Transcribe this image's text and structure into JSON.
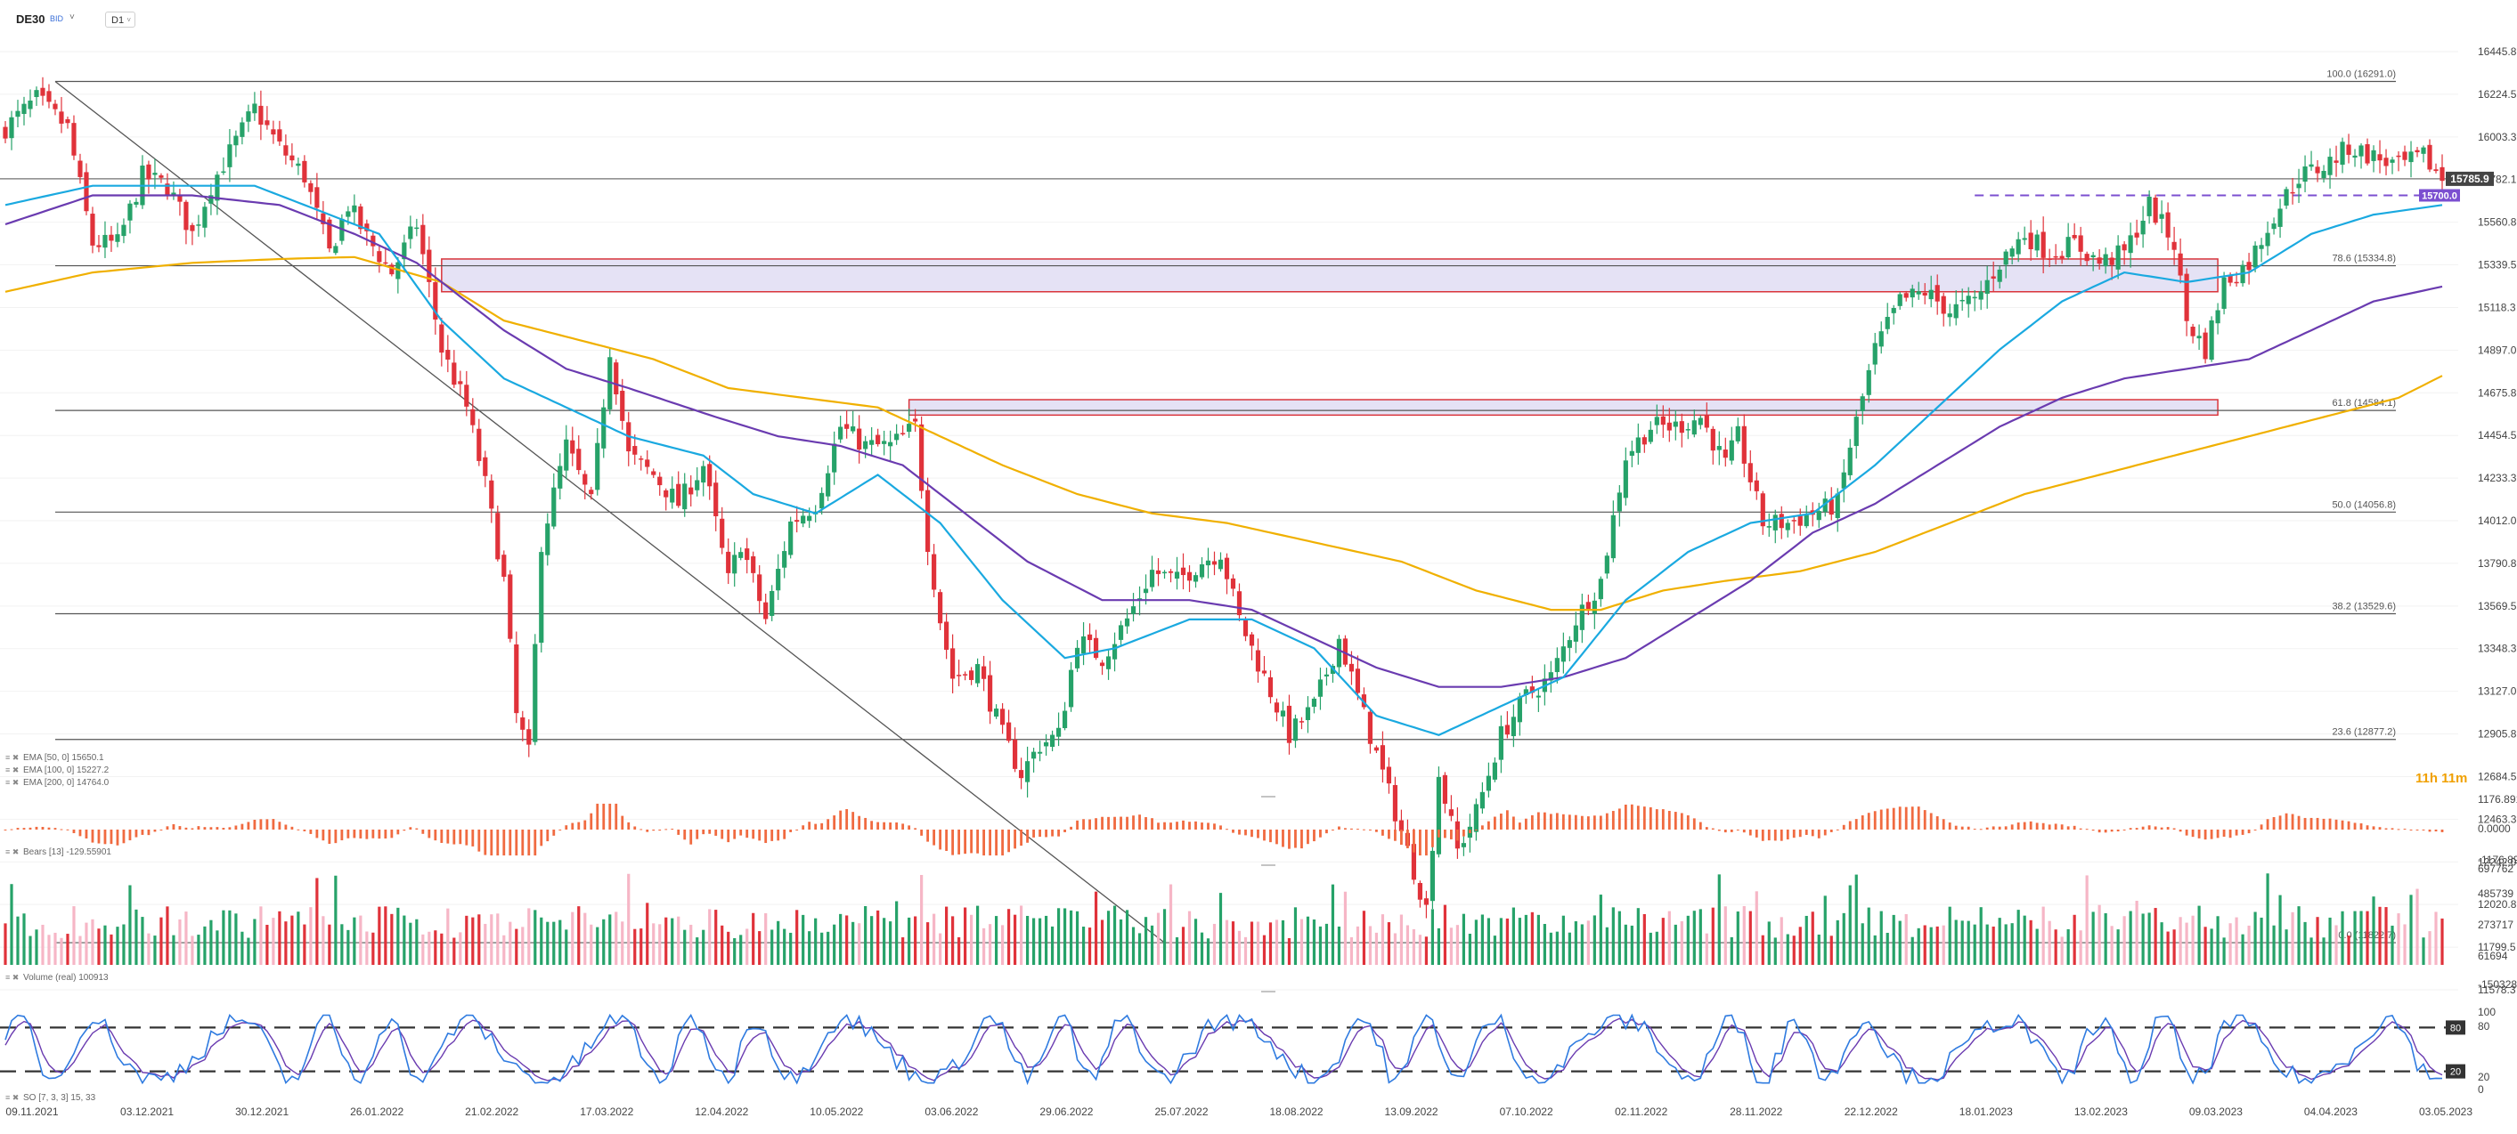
{
  "header": {
    "symbol": "DE30",
    "badge": "BID",
    "caret": "˅",
    "timeframe": "D1",
    "timeframe_caret": "˅"
  },
  "colors": {
    "bull": "#26a269",
    "bear": "#e0323a",
    "ema50": "#1aa9e0",
    "ema100": "#6a3bb0",
    "ema200": "#f0b000",
    "zone_fill": "#dcd8f2",
    "zone_border": "#d9343b",
    "dashed_level": "#7b4fd0",
    "current_price_tag": "#444444",
    "countdown": "#f0a000",
    "bears": "#f06a40",
    "vol_up": "#26a269",
    "vol_down": "#e0323a",
    "vol_down_light": "#f6b6c6",
    "so_main": "#2f7be0",
    "so_signal": "#6a3bb0"
  },
  "chart_data": [
    {
      "type": "candlestick",
      "panel": "price",
      "title": "",
      "ylim": [
        11578.3,
        16445.8
      ],
      "y_ticks": [
        "16445.8",
        "16224.5",
        "16003.3",
        "15782.1",
        "15560.8",
        "15339.5",
        "15118.3",
        "14897.0",
        "14675.8",
        "14454.5",
        "14233.3",
        "14012.0",
        "13790.8",
        "13569.5",
        "13348.3",
        "13127.0",
        "12905.8",
        "12684.5",
        "12463.3",
        "12242.0",
        "12020.8",
        "11799.5",
        "11578.3"
      ],
      "x_labels": [
        "09.11.2021",
        "03.12.2021",
        "30.12.2021",
        "26.01.2022",
        "21.02.2022",
        "17.03.2022",
        "12.04.2022",
        "10.05.2022",
        "03.06.2022",
        "29.06.2022",
        "25.07.2022",
        "18.08.2022",
        "13.09.2022",
        "07.10.2022",
        "02.11.2022",
        "28.11.2022",
        "22.12.2022",
        "18.01.2023",
        "13.02.2023",
        "09.03.2023",
        "04.04.2023",
        "03.05.2023"
      ],
      "close_anchors": [
        [
          0,
          16050
        ],
        [
          5,
          16200
        ],
        [
          10,
          16050
        ],
        [
          14,
          15450
        ],
        [
          18,
          15450
        ],
        [
          22,
          15800
        ],
        [
          26,
          15750
        ],
        [
          30,
          15500
        ],
        [
          33,
          15750
        ],
        [
          37,
          15980
        ],
        [
          40,
          16150
        ],
        [
          44,
          15950
        ],
        [
          48,
          15800
        ],
        [
          52,
          15400
        ],
        [
          55,
          15650
        ],
        [
          58,
          15480
        ],
        [
          62,
          15300
        ],
        [
          66,
          15550
        ],
        [
          70,
          14900
        ],
        [
          74,
          14600
        ],
        [
          77,
          14200
        ],
        [
          80,
          13700
        ],
        [
          82,
          13000
        ],
        [
          84,
          12800
        ],
        [
          86,
          13900
        ],
        [
          90,
          14400
        ],
        [
          94,
          14100
        ],
        [
          97,
          14900
        ],
        [
          100,
          14350
        ],
        [
          104,
          14250
        ],
        [
          108,
          14100
        ],
        [
          112,
          14300
        ],
        [
          116,
          13700
        ],
        [
          118,
          13900
        ],
        [
          122,
          13500
        ],
        [
          126,
          14000
        ],
        [
          130,
          14100
        ],
        [
          134,
          14500
        ],
        [
          138,
          14400
        ],
        [
          142,
          14400
        ],
        [
          146,
          14500
        ],
        [
          148,
          13900
        ],
        [
          150,
          13500
        ],
        [
          152,
          13200
        ],
        [
          156,
          13250
        ],
        [
          160,
          12900
        ],
        [
          163,
          12700
        ],
        [
          166,
          12850
        ],
        [
          169,
          12900
        ],
        [
          172,
          13400
        ],
        [
          176,
          13300
        ],
        [
          180,
          13500
        ],
        [
          184,
          13750
        ],
        [
          188,
          13700
        ],
        [
          192,
          13800
        ],
        [
          195,
          13850
        ],
        [
          198,
          13500
        ],
        [
          202,
          13200
        ],
        [
          206,
          12900
        ],
        [
          210,
          13050
        ],
        [
          214,
          13400
        ],
        [
          216,
          13200
        ],
        [
          220,
          12800
        ],
        [
          224,
          12400
        ],
        [
          228,
          12000
        ],
        [
          230,
          12700
        ],
        [
          233,
          12300
        ],
        [
          236,
          12500
        ],
        [
          240,
          12900
        ],
        [
          244,
          13100
        ],
        [
          248,
          13200
        ],
        [
          252,
          13500
        ],
        [
          256,
          13700
        ],
        [
          260,
          14350
        ],
        [
          264,
          14500
        ],
        [
          268,
          14500
        ],
        [
          272,
          14550
        ],
        [
          276,
          14300
        ],
        [
          278,
          14450
        ],
        [
          282,
          14000
        ],
        [
          286,
          14000
        ],
        [
          290,
          14050
        ],
        [
          294,
          14100
        ],
        [
          296,
          14400
        ],
        [
          300,
          14900
        ],
        [
          304,
          15150
        ],
        [
          308,
          15200
        ],
        [
          312,
          15100
        ],
        [
          316,
          15150
        ],
        [
          320,
          15350
        ],
        [
          324,
          15500
        ],
        [
          328,
          15400
        ],
        [
          332,
          15450
        ],
        [
          336,
          15350
        ],
        [
          340,
          15400
        ],
        [
          344,
          15650
        ],
        [
          348,
          15450
        ],
        [
          350,
          15050
        ],
        [
          353,
          14900
        ],
        [
          356,
          15250
        ],
        [
          360,
          15350
        ],
        [
          364,
          15600
        ],
        [
          368,
          15800
        ],
        [
          372,
          15850
        ],
        [
          376,
          15950
        ],
        [
          380,
          15900
        ],
        [
          384,
          15850
        ],
        [
          388,
          15900
        ],
        [
          391,
          15785.9
        ]
      ],
      "ema50_anchors": [
        [
          0,
          15650
        ],
        [
          14,
          15750
        ],
        [
          26,
          15750
        ],
        [
          40,
          15750
        ],
        [
          52,
          15600
        ],
        [
          60,
          15500
        ],
        [
          70,
          15050
        ],
        [
          80,
          14750
        ],
        [
          90,
          14600
        ],
        [
          100,
          14450
        ],
        [
          112,
          14350
        ],
        [
          120,
          14150
        ],
        [
          130,
          14050
        ],
        [
          140,
          14250
        ],
        [
          150,
          14000
        ],
        [
          160,
          13600
        ],
        [
          170,
          13300
        ],
        [
          178,
          13350
        ],
        [
          190,
          13500
        ],
        [
          200,
          13500
        ],
        [
          210,
          13350
        ],
        [
          220,
          13000
        ],
        [
          230,
          12900
        ],
        [
          240,
          13050
        ],
        [
          250,
          13200
        ],
        [
          260,
          13600
        ],
        [
          270,
          13850
        ],
        [
          280,
          14000
        ],
        [
          290,
          14050
        ],
        [
          300,
          14300
        ],
        [
          310,
          14600
        ],
        [
          320,
          14900
        ],
        [
          330,
          15150
        ],
        [
          340,
          15300
        ],
        [
          350,
          15250
        ],
        [
          360,
          15300
        ],
        [
          370,
          15500
        ],
        [
          380,
          15600
        ],
        [
          391,
          15650
        ]
      ],
      "ema100_anchors": [
        [
          0,
          15550
        ],
        [
          14,
          15700
        ],
        [
          30,
          15700
        ],
        [
          44,
          15650
        ],
        [
          56,
          15500
        ],
        [
          66,
          15350
        ],
        [
          80,
          15000
        ],
        [
          90,
          14800
        ],
        [
          100,
          14700
        ],
        [
          114,
          14550
        ],
        [
          124,
          14450
        ],
        [
          134,
          14400
        ],
        [
          144,
          14300
        ],
        [
          154,
          14050
        ],
        [
          164,
          13800
        ],
        [
          176,
          13600
        ],
        [
          190,
          13600
        ],
        [
          200,
          13550
        ],
        [
          210,
          13400
        ],
        [
          220,
          13250
        ],
        [
          230,
          13150
        ],
        [
          240,
          13150
        ],
        [
          250,
          13200
        ],
        [
          260,
          13300
        ],
        [
          270,
          13500
        ],
        [
          280,
          13700
        ],
        [
          290,
          13950
        ],
        [
          300,
          14100
        ],
        [
          310,
          14300
        ],
        [
          320,
          14500
        ],
        [
          330,
          14650
        ],
        [
          340,
          14750
        ],
        [
          350,
          14800
        ],
        [
          360,
          14850
        ],
        [
          370,
          15000
        ],
        [
          380,
          15150
        ],
        [
          391,
          15227
        ]
      ],
      "ema200_anchors": [
        [
          0,
          15200
        ],
        [
          14,
          15300
        ],
        [
          30,
          15350
        ],
        [
          44,
          15370
        ],
        [
          56,
          15380
        ],
        [
          70,
          15250
        ],
        [
          80,
          15050
        ],
        [
          92,
          14950
        ],
        [
          104,
          14850
        ],
        [
          116,
          14700
        ],
        [
          128,
          14650
        ],
        [
          140,
          14600
        ],
        [
          150,
          14450
        ],
        [
          160,
          14300
        ],
        [
          172,
          14150
        ],
        [
          184,
          14050
        ],
        [
          196,
          14000
        ],
        [
          210,
          13900
        ],
        [
          224,
          13800
        ],
        [
          236,
          13650
        ],
        [
          248,
          13550
        ],
        [
          256,
          13550
        ],
        [
          266,
          13650
        ],
        [
          276,
          13700
        ],
        [
          288,
          13750
        ],
        [
          300,
          13850
        ],
        [
          312,
          14000
        ],
        [
          324,
          14150
        ],
        [
          336,
          14250
        ],
        [
          348,
          14350
        ],
        [
          360,
          14450
        ],
        [
          372,
          14550
        ],
        [
          384,
          14650
        ],
        [
          391,
          14764
        ]
      ],
      "fibonacci": [
        {
          "label": "100.0 (16291.0)",
          "value": 16291.0
        },
        {
          "label": "78.6 (15334.8)",
          "value": 15334.8
        },
        {
          "label": "61.8 (14584.1)",
          "value": 14584.1
        },
        {
          "label": "50.0 (14056.8)",
          "value": 14056.8
        },
        {
          "label": "38.2 (13529.6)",
          "value": 13529.6
        },
        {
          "label": "23.6 (12877.2)",
          "value": 12877.2
        },
        {
          "label": "0.0 (11822.7)",
          "value": 11822.7
        }
      ],
      "horizontal_level": 15785.9,
      "zones": [
        {
          "from_bar": 70,
          "to_bar": 355,
          "low": 15200,
          "high": 15370
        },
        {
          "from_bar": 145,
          "to_bar": 355,
          "low": 14560,
          "high": 14640
        }
      ],
      "dashed_level": {
        "value": 15700.0,
        "from_bar": 316,
        "label": "15700.0"
      },
      "current_price": {
        "value": 15785.9,
        "label": "15785.9"
      },
      "trendline": {
        "from": [
          8,
          16291.0
        ],
        "to": [
          186,
          11822.7
        ]
      },
      "countdown": "11h 11m",
      "legend": [
        {
          "icon": "≡ ✖",
          "text": "EMA [50, 0] 15650.1"
        },
        {
          "icon": "≡ ✖",
          "text": "EMA [100, 0] 15227.2"
        },
        {
          "icon": "≡ ✖",
          "text": "EMA [200, 0] 14764.0"
        }
      ]
    },
    {
      "type": "bar",
      "panel": "bears",
      "ylim": [
        -1176.89,
        1176.891
      ],
      "y_ticks": [
        "1176.891",
        "0.0000",
        "-1176.89"
      ],
      "legend": {
        "icon": "≡ ✖",
        "text": "Bears [13] -129.55901"
      }
    },
    {
      "type": "bar",
      "panel": "volume",
      "ylim": [
        -150328,
        697762
      ],
      "y_ticks": [
        "697762",
        "485739",
        "273717",
        "61694",
        "-150328"
      ],
      "legend": {
        "icon": "≡ ✖",
        "text": "Volume (real) 100913"
      }
    },
    {
      "type": "line",
      "panel": "stochastic",
      "ylim": [
        0,
        100
      ],
      "y_ticks": [
        "100",
        "80",
        "20",
        "0"
      ],
      "levels": [
        80,
        20
      ],
      "level_tags": [
        "80",
        "20"
      ],
      "legend": {
        "icon": "≡ ✖",
        "text": "SO [7, 3, 3] 15, 33"
      }
    }
  ]
}
